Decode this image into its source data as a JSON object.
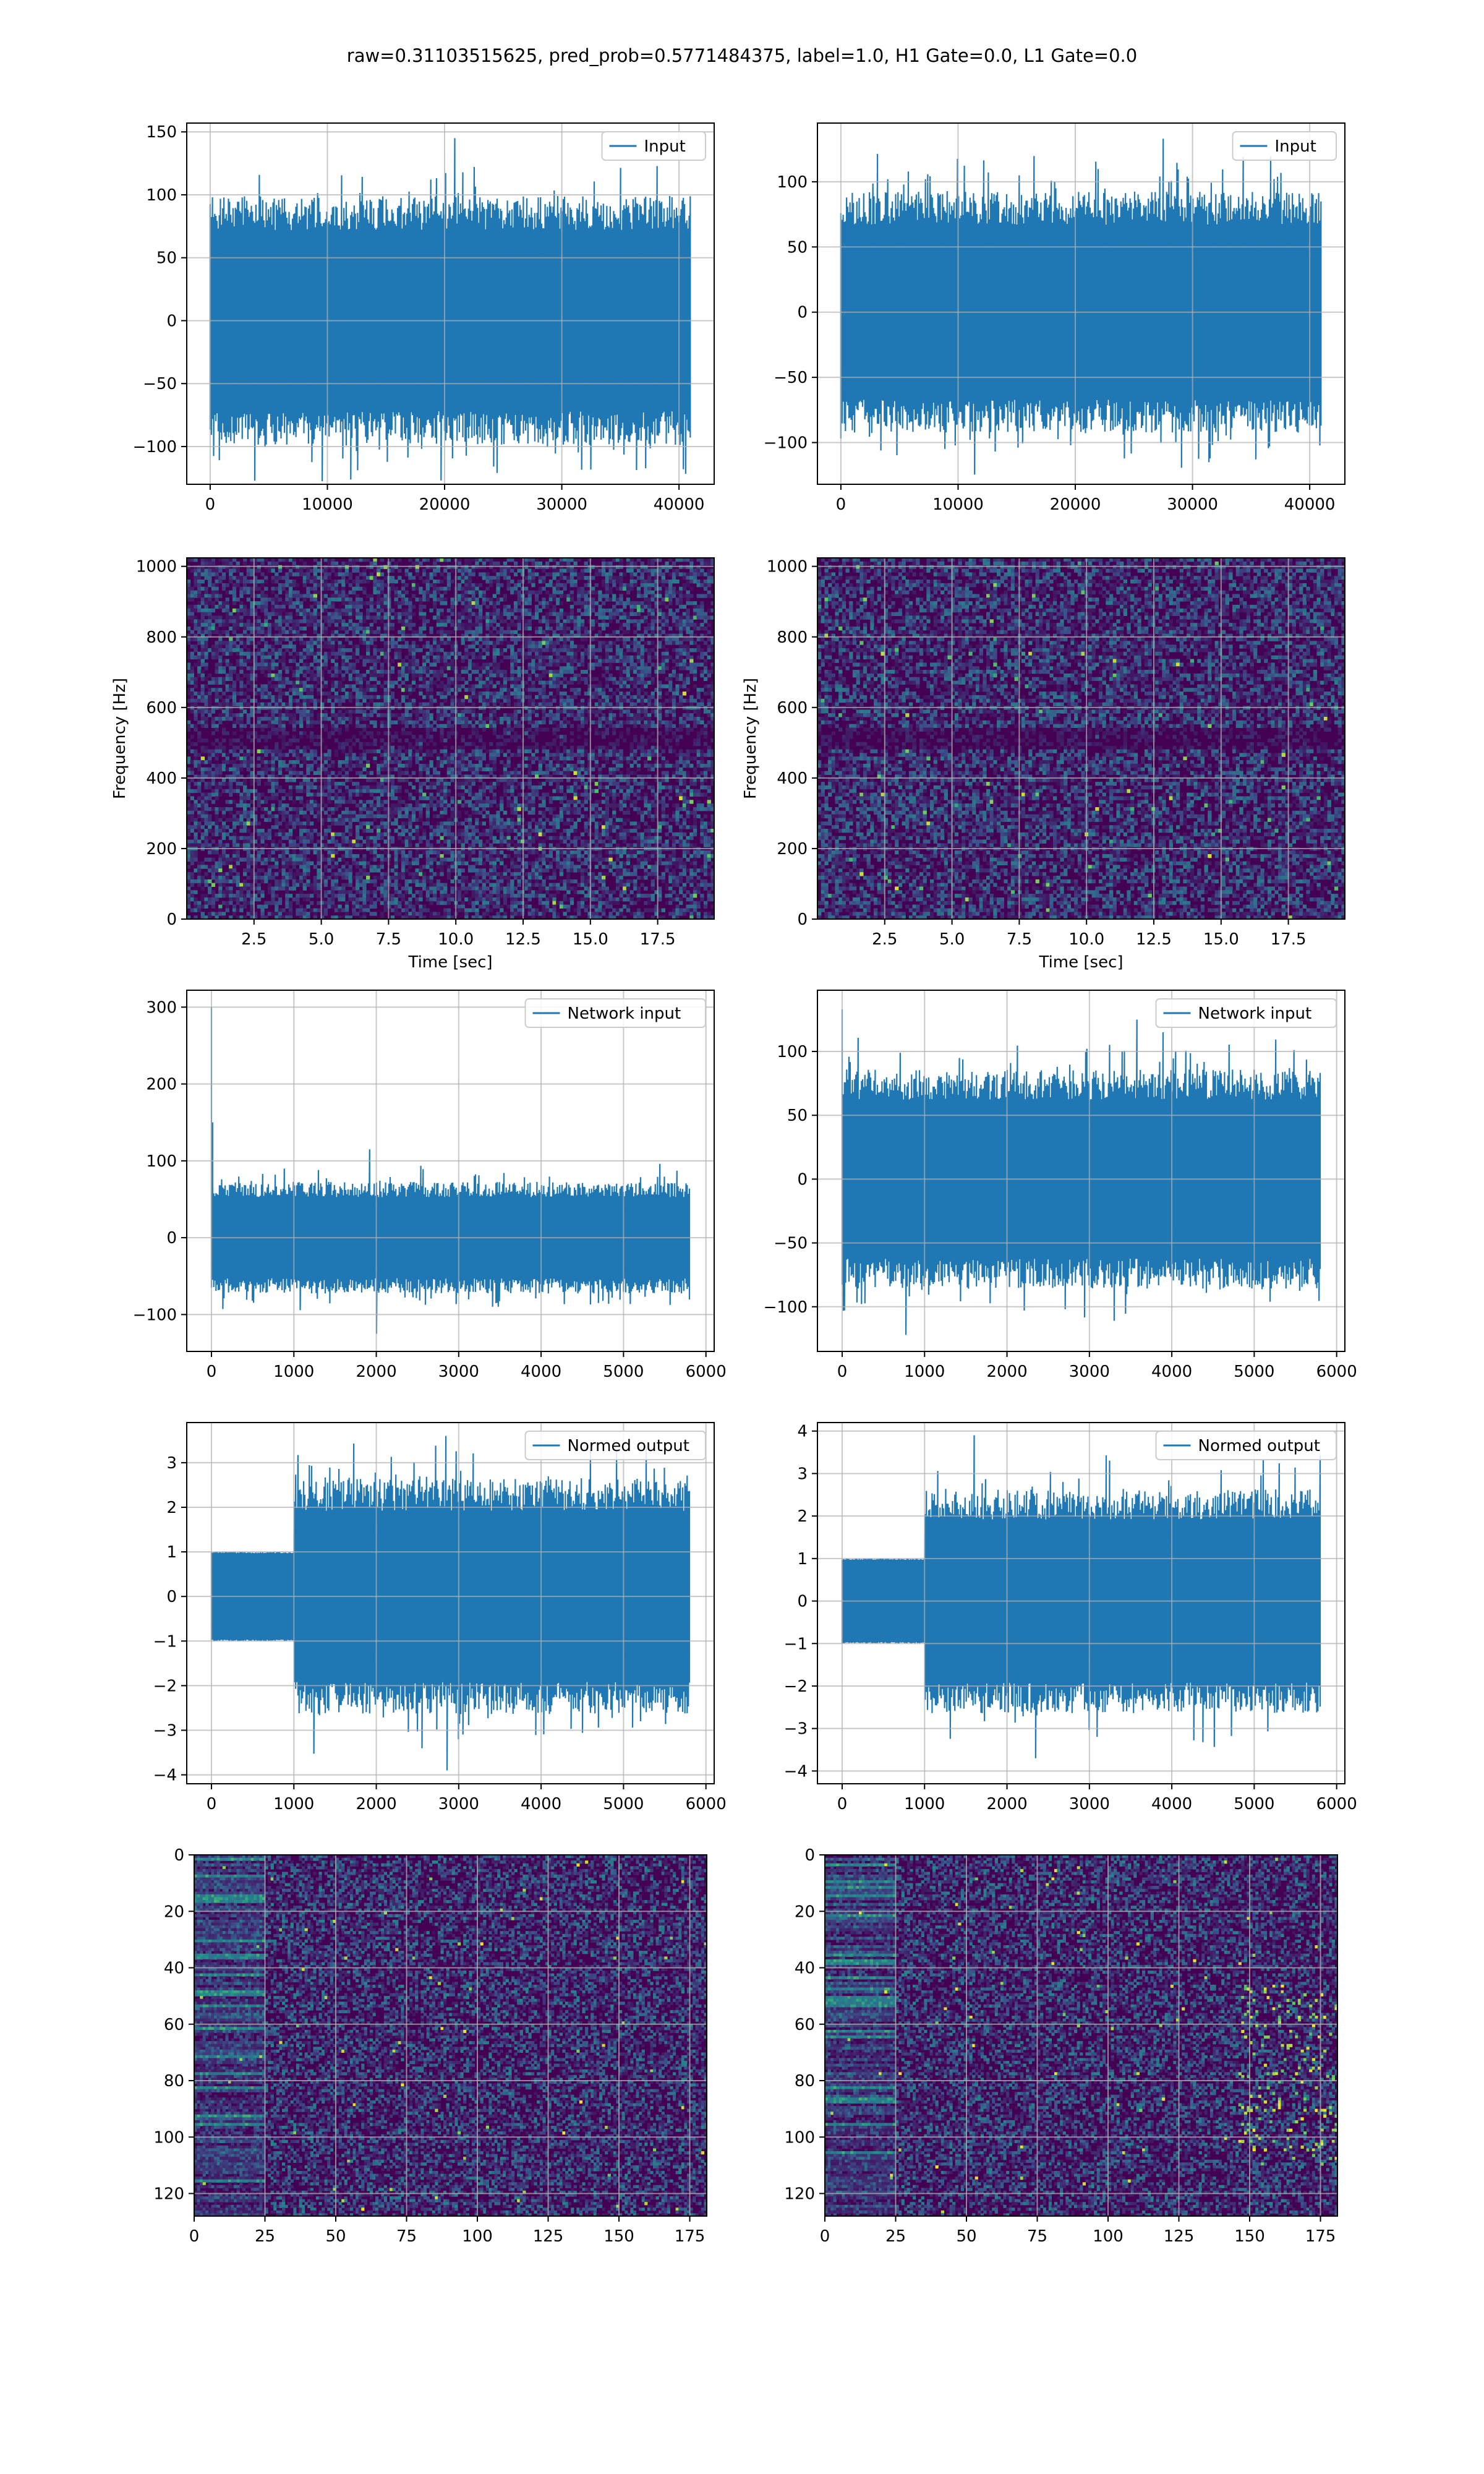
{
  "title": "raw=0.31103515625, pred_prob=0.5771484375, label=1.0, H1 Gate=0.0, L1 Gate=0.0",
  "colors": {
    "line": "#1f77b4",
    "grid": "#b0b0b0",
    "spine": "#000000",
    "viridis": [
      "#440154",
      "#3b528b",
      "#21918c",
      "#5ec962",
      "#fde725"
    ]
  },
  "chart_data": [
    {
      "id": "input-h1",
      "type": "line",
      "series": [
        {
          "name": "Input",
          "kind": "stationary_noise",
          "n": 40960,
          "amplitude": 30,
          "peak_max": 145,
          "peak_min": -127
        }
      ],
      "xlim": [
        -2000,
        43000
      ],
      "ylim": [
        -130,
        157
      ],
      "xticks": [
        0,
        10000,
        20000,
        30000,
        40000
      ],
      "xticklabels": [
        "0",
        "10000",
        "20000",
        "30000",
        "40000"
      ],
      "yticks": [
        -100,
        -50,
        0,
        50,
        100,
        150
      ],
      "yticklabels": [
        "−100",
        "−50",
        "0",
        "50",
        "100",
        "150"
      ],
      "legend": "upper right",
      "grid": true
    },
    {
      "id": "input-l1",
      "type": "line",
      "series": [
        {
          "name": "Input",
          "kind": "stationary_noise",
          "n": 40960,
          "amplitude": 28,
          "peak_max": 133,
          "peak_min": -115
        }
      ],
      "xlim": [
        -2000,
        43000
      ],
      "ylim": [
        -132,
        145
      ],
      "xticks": [
        0,
        10000,
        20000,
        30000,
        40000
      ],
      "xticklabels": [
        "0",
        "10000",
        "20000",
        "30000",
        "40000"
      ],
      "yticks": [
        -100,
        -50,
        0,
        50,
        100
      ],
      "yticklabels": [
        "−100",
        "−50",
        "0",
        "50",
        "100"
      ],
      "legend": "upper right",
      "grid": true
    },
    {
      "id": "spec-h1",
      "type": "heatmap",
      "kind": "spectrogram",
      "seed": 11,
      "band_hz": [
        480,
        540
      ],
      "xlim": [
        0,
        19.6
      ],
      "ylim": [
        0,
        1024
      ],
      "xticks": [
        2.5,
        5,
        7.5,
        10,
        12.5,
        15,
        17.5
      ],
      "xticklabels": [
        "2.5",
        "5.0",
        "7.5",
        "10.0",
        "12.5",
        "15.0",
        "17.5"
      ],
      "yticks": [
        0,
        200,
        400,
        600,
        800,
        1000
      ],
      "yticklabels": [
        "0",
        "200",
        "400",
        "600",
        "800",
        "1000"
      ],
      "xlabel": "Time [sec]",
      "ylabel": "Frequency [Hz]",
      "grid": true
    },
    {
      "id": "spec-l1",
      "type": "heatmap",
      "kind": "spectrogram",
      "seed": 23,
      "band_hz": [
        480,
        540
      ],
      "xlim": [
        0,
        19.6
      ],
      "ylim": [
        0,
        1024
      ],
      "xticks": [
        2.5,
        5,
        7.5,
        10,
        12.5,
        15,
        17.5
      ],
      "xticklabels": [
        "2.5",
        "5.0",
        "7.5",
        "10.0",
        "12.5",
        "15.0",
        "17.5"
      ],
      "yticks": [
        0,
        200,
        400,
        600,
        800,
        1000
      ],
      "yticklabels": [
        "0",
        "200",
        "400",
        "600",
        "800",
        "1000"
      ],
      "xlabel": "Time [sec]",
      "ylabel": "Frequency [Hz]",
      "grid": true
    },
    {
      "id": "net-h1",
      "type": "line",
      "series": [
        {
          "name": "Network input",
          "kind": "noise_with_spike",
          "n": 5800,
          "amplitude": 22,
          "spike": 300,
          "peak_max": 115,
          "peak_min": -125
        }
      ],
      "xlim": [
        -300,
        6100
      ],
      "ylim": [
        -148,
        322
      ],
      "xticks": [
        0,
        1000,
        2000,
        3000,
        4000,
        5000,
        6000
      ],
      "xticklabels": [
        "0",
        "1000",
        "2000",
        "3000",
        "4000",
        "5000",
        "6000"
      ],
      "yticks": [
        -100,
        0,
        100,
        200,
        300
      ],
      "yticklabels": [
        "−100",
        "0",
        "100",
        "200",
        "300"
      ],
      "legend": "upper right",
      "grid": true
    },
    {
      "id": "net-l1",
      "type": "line",
      "series": [
        {
          "name": "Network input",
          "kind": "noise_with_spike",
          "n": 5800,
          "amplitude": 26,
          "spike": 133,
          "peak_max": 125,
          "peak_min": -122
        }
      ],
      "xlim": [
        -300,
        6100
      ],
      "ylim": [
        -135,
        148
      ],
      "xticks": [
        0,
        1000,
        2000,
        3000,
        4000,
        5000,
        6000
      ],
      "xticklabels": [
        "0",
        "1000",
        "2000",
        "3000",
        "4000",
        "5000",
        "6000"
      ],
      "yticks": [
        -100,
        -50,
        0,
        50,
        100
      ],
      "yticklabels": [
        "−100",
        "−50",
        "0",
        "50",
        "100"
      ],
      "legend": "upper right",
      "grid": true
    },
    {
      "id": "norm-h1",
      "type": "line",
      "series": [
        {
          "name": "Normed output",
          "kind": "clipped_then_noise",
          "n": 5800,
          "clip_until": 1000,
          "amplitude": 0.8,
          "peak_max": 3.6,
          "peak_min": -3.9
        }
      ],
      "xlim": [
        -300,
        6100
      ],
      "ylim": [
        -4.2,
        3.9
      ],
      "xticks": [
        0,
        1000,
        2000,
        3000,
        4000,
        5000,
        6000
      ],
      "xticklabels": [
        "0",
        "1000",
        "2000",
        "3000",
        "4000",
        "5000",
        "6000"
      ],
      "yticks": [
        -4,
        -3,
        -2,
        -1,
        0,
        1,
        2,
        3
      ],
      "yticklabels": [
        "−4",
        "−3",
        "−2",
        "−1",
        "0",
        "1",
        "2",
        "3"
      ],
      "legend": "upper right",
      "grid": true
    },
    {
      "id": "norm-l1",
      "type": "line",
      "series": [
        {
          "name": "Normed output",
          "kind": "clipped_then_noise",
          "n": 5800,
          "clip_until": 1000,
          "amplitude": 0.8,
          "peak_max": 3.9,
          "peak_min": -3.7
        }
      ],
      "xlim": [
        -300,
        6100
      ],
      "ylim": [
        -4.3,
        4.2
      ],
      "xticks": [
        0,
        1000,
        2000,
        3000,
        4000,
        5000,
        6000
      ],
      "xticklabels": [
        "0",
        "1000",
        "2000",
        "3000",
        "4000",
        "5000",
        "6000"
      ],
      "yticks": [
        -4,
        -3,
        -2,
        -1,
        0,
        1,
        2,
        3,
        4
      ],
      "yticklabels": [
        "−4",
        "−3",
        "−2",
        "−1",
        "0",
        "1",
        "2",
        "3",
        "4"
      ],
      "legend": "upper right",
      "grid": true
    },
    {
      "id": "feat-h1",
      "type": "heatmap",
      "kind": "feature_map",
      "seed": 37,
      "rows": 128,
      "cols": 181,
      "hot_right": false,
      "xlim": [
        0,
        181
      ],
      "ylim": [
        128,
        0
      ],
      "xticks": [
        0,
        25,
        50,
        75,
        100,
        125,
        150,
        175
      ],
      "xticklabels": [
        "0",
        "25",
        "50",
        "75",
        "100",
        "125",
        "150",
        "175"
      ],
      "yticks": [
        0,
        20,
        40,
        60,
        80,
        100,
        120
      ],
      "yticklabels": [
        "0",
        "20",
        "40",
        "60",
        "80",
        "100",
        "120"
      ],
      "grid": true
    },
    {
      "id": "feat-l1",
      "type": "heatmap",
      "kind": "feature_map",
      "seed": 53,
      "rows": 128,
      "cols": 181,
      "hot_right": true,
      "xlim": [
        0,
        181
      ],
      "ylim": [
        128,
        0
      ],
      "xticks": [
        0,
        25,
        50,
        75,
        100,
        125,
        150,
        175
      ],
      "xticklabels": [
        "0",
        "25",
        "50",
        "75",
        "100",
        "125",
        "150",
        "175"
      ],
      "yticks": [
        0,
        20,
        40,
        60,
        80,
        100,
        120
      ],
      "yticklabels": [
        "0",
        "20",
        "40",
        "60",
        "80",
        "100",
        "120"
      ],
      "grid": true
    }
  ]
}
